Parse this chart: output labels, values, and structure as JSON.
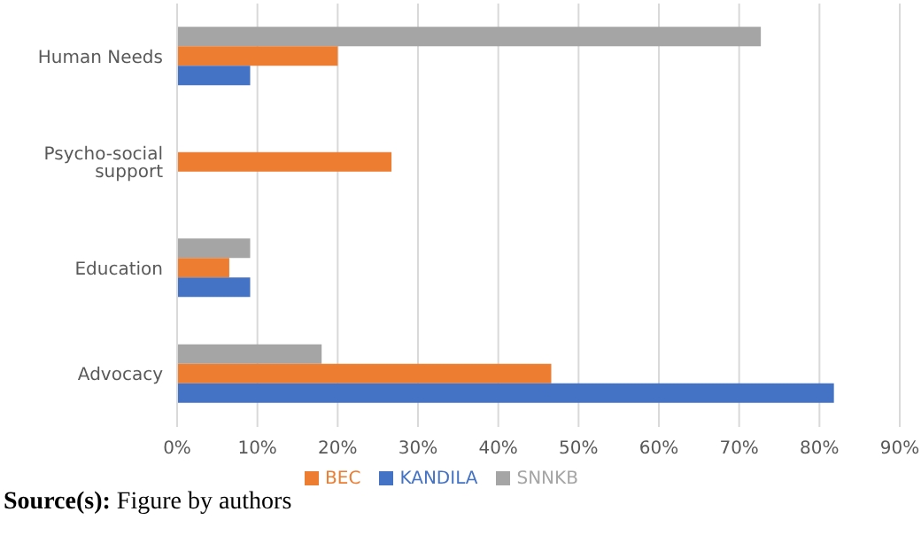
{
  "chart_data": {
    "type": "bar",
    "orientation": "horizontal",
    "categories": [
      "Human Needs",
      "Psycho-social support",
      "Education",
      "Advocacy"
    ],
    "series": [
      {
        "name": "SNNKB",
        "color": "#a5a5a5",
        "values": [
          72.7,
          0,
          9.1,
          18.0
        ]
      },
      {
        "name": "BEC",
        "color": "#ed7d31",
        "values": [
          20.0,
          26.7,
          6.5,
          46.6
        ]
      },
      {
        "name": "KANDILA",
        "color": "#4472c4",
        "values": [
          9.1,
          0,
          9.1,
          81.8
        ]
      }
    ],
    "xlim": [
      0,
      90
    ],
    "xticks": [
      {
        "value": 0,
        "label": "0%"
      },
      {
        "value": 10,
        "label": "10%"
      },
      {
        "value": 20,
        "label": "20%"
      },
      {
        "value": 30,
        "label": "30%"
      },
      {
        "value": 40,
        "label": "40%"
      },
      {
        "value": 50,
        "label": "50%"
      },
      {
        "value": 60,
        "label": "60%"
      },
      {
        "value": 70,
        "label": "70%"
      },
      {
        "value": 80,
        "label": "80%"
      },
      {
        "value": 90,
        "label": "90%"
      }
    ],
    "grid": "x",
    "legend": "bottom",
    "annotations": [
      "Source(s): Figure by authors"
    ]
  }
}
